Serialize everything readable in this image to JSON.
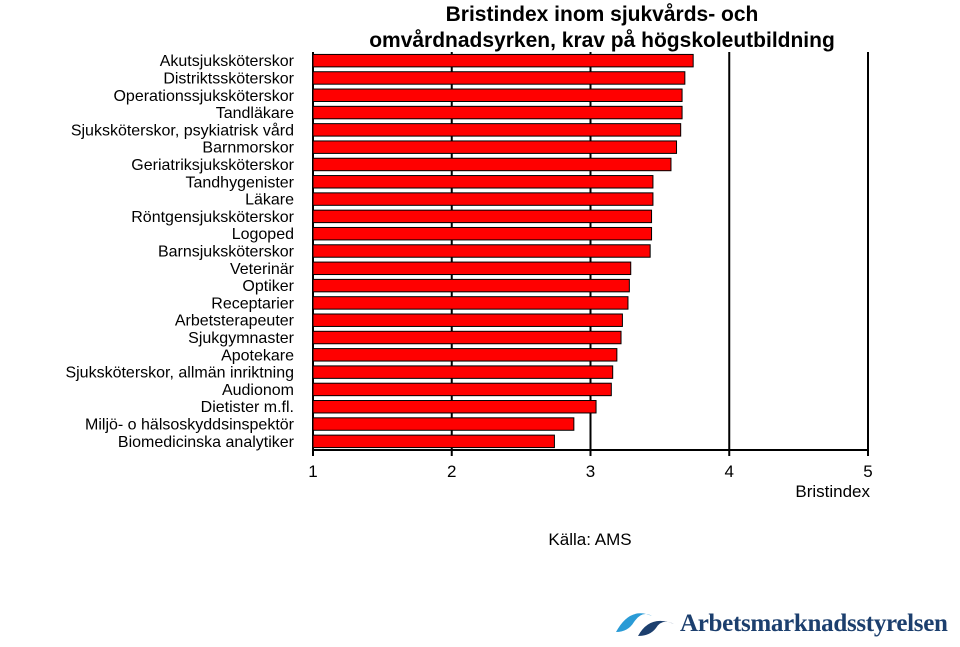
{
  "chart_data": {
    "type": "bar",
    "orientation": "horizontal",
    "title_lines": [
      "Bristindex inom sjukvårds- och",
      "omvårdnadsyrken, krav på högskoleutbildning"
    ],
    "categories": [
      "Akutsjuksköterskor",
      "Distriktssköterskor",
      "Operationssjuksköterskor",
      "Tandläkare",
      "Sjuksköterskor, psykiatrisk vård",
      "Barnmorskor",
      "Geriatriksjuksköterskor",
      "Tandhygenister",
      "Läkare",
      "Röntgensjuksköterskor",
      "Logoped",
      "Barnsjuksköterskor",
      "Veterinär",
      "Optiker",
      "Receptarier",
      "Arbetsterapeuter",
      "Sjukgymnaster",
      "Apotekare",
      "Sjuksköterskor, allmän inriktning",
      "Audionom",
      "Dietister m.fl.",
      "Miljö- o hälsoskyddsinspektör",
      "Biomedicinska analytiker"
    ],
    "values": [
      3.74,
      3.68,
      3.66,
      3.66,
      3.65,
      3.62,
      3.58,
      3.45,
      3.45,
      3.44,
      3.44,
      3.43,
      3.29,
      3.28,
      3.27,
      3.23,
      3.22,
      3.19,
      3.16,
      3.15,
      3.04,
      2.88,
      2.74
    ],
    "xlim": [
      1,
      5
    ],
    "xticks": [
      "1",
      "2",
      "3",
      "4",
      "5"
    ],
    "xlabel": "Bristindex",
    "grid": "vertical",
    "bar_color": "#ff0000"
  },
  "source_text": "Källa: AMS",
  "logo": {
    "text": "Arbetsmarknadsstyrelsen",
    "color": "#1c3f6e",
    "accent_color": "#2a9bd6"
  }
}
